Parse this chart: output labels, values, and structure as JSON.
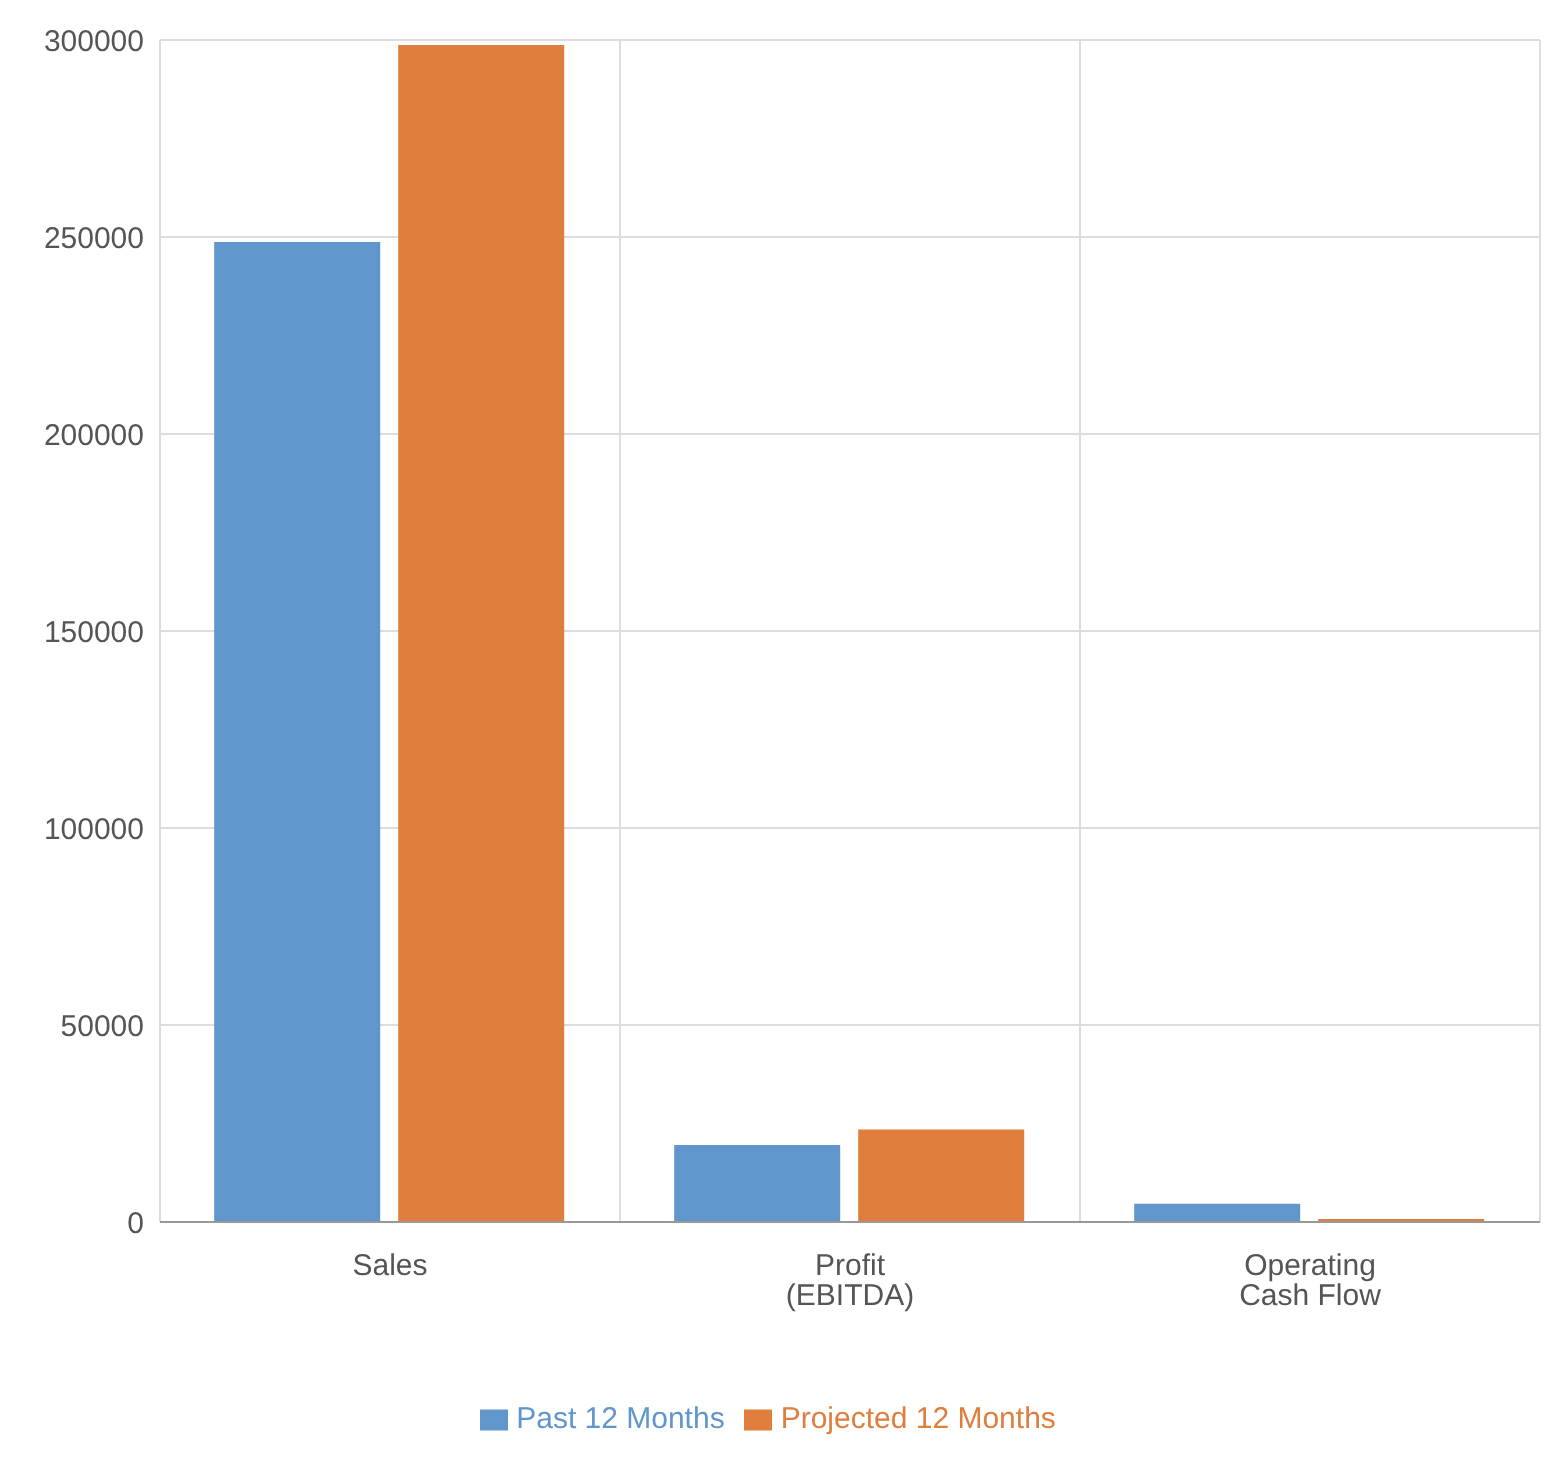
{
  "chart_data": {
    "type": "bar",
    "categories": [
      "Sales",
      "Profit (EBITDA)",
      "Operating Cash Flow"
    ],
    "series": [
      {
        "name": "Past 12 Months",
        "color": "#6096cc",
        "values": [
          248500,
          19300,
          4400
        ]
      },
      {
        "name": "Projected 12 Months",
        "color": "#e07e3e",
        "values": [
          298500,
          23200,
          500
        ]
      }
    ],
    "ylim": [
      0,
      300000
    ],
    "yticks": [
      0,
      50000,
      100000,
      150000,
      200000,
      250000,
      300000
    ],
    "grid": true,
    "legend": "bottom"
  }
}
